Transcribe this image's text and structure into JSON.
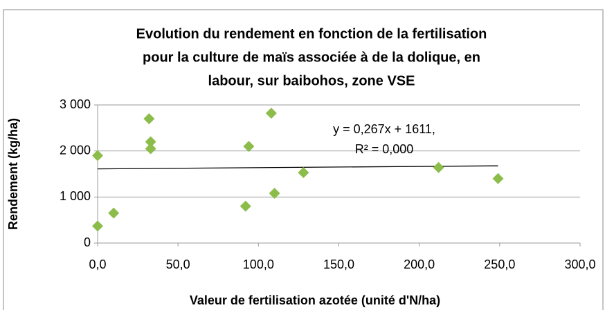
{
  "chart_data": {
    "type": "scatter",
    "title": [
      "Evolution du rendement en fonction de la fertilisation",
      "pour la culture de maïs associée à de la dolique, en",
      "labour, sur baibohos, zone VSE"
    ],
    "x_label": "Valeur de fertilisation azotée (unité d'N/ha)",
    "y_label": "Rendement (kg/ha)",
    "x": [
      0,
      0,
      10,
      32,
      33,
      33,
      92,
      94,
      108,
      110,
      128,
      212,
      249
    ],
    "values": [
      1900,
      370,
      650,
      2700,
      2200,
      2050,
      800,
      2100,
      2820,
      1080,
      1530,
      1640,
      1400
    ],
    "color": "#8cbd4a",
    "xlim": [
      0,
      300
    ],
    "ylim": [
      0,
      3000
    ],
    "xticks": [
      {
        "value": 0,
        "label": "0,0"
      },
      {
        "value": 50,
        "label": "50,0"
      },
      {
        "value": 100,
        "label": "100,0"
      },
      {
        "value": 150,
        "label": "150,0"
      },
      {
        "value": 200,
        "label": "200,0"
      },
      {
        "value": 250,
        "label": "250,0"
      },
      {
        "value": 300,
        "label": "300,0"
      }
    ],
    "yticks": [
      0,
      {
        "value": 1000,
        "label": "1 000"
      },
      {
        "value": 2000,
        "label": "2 000"
      },
      {
        "value": 3000,
        "label": "3 000"
      }
    ],
    "grid": true,
    "trendline": {
      "slope": 0.267,
      "intercept": 1611,
      "xrange": [
        0,
        249
      ]
    },
    "annotations": [
      "y = 0,267x + 1611,",
      "R² = 0,000"
    ]
  }
}
